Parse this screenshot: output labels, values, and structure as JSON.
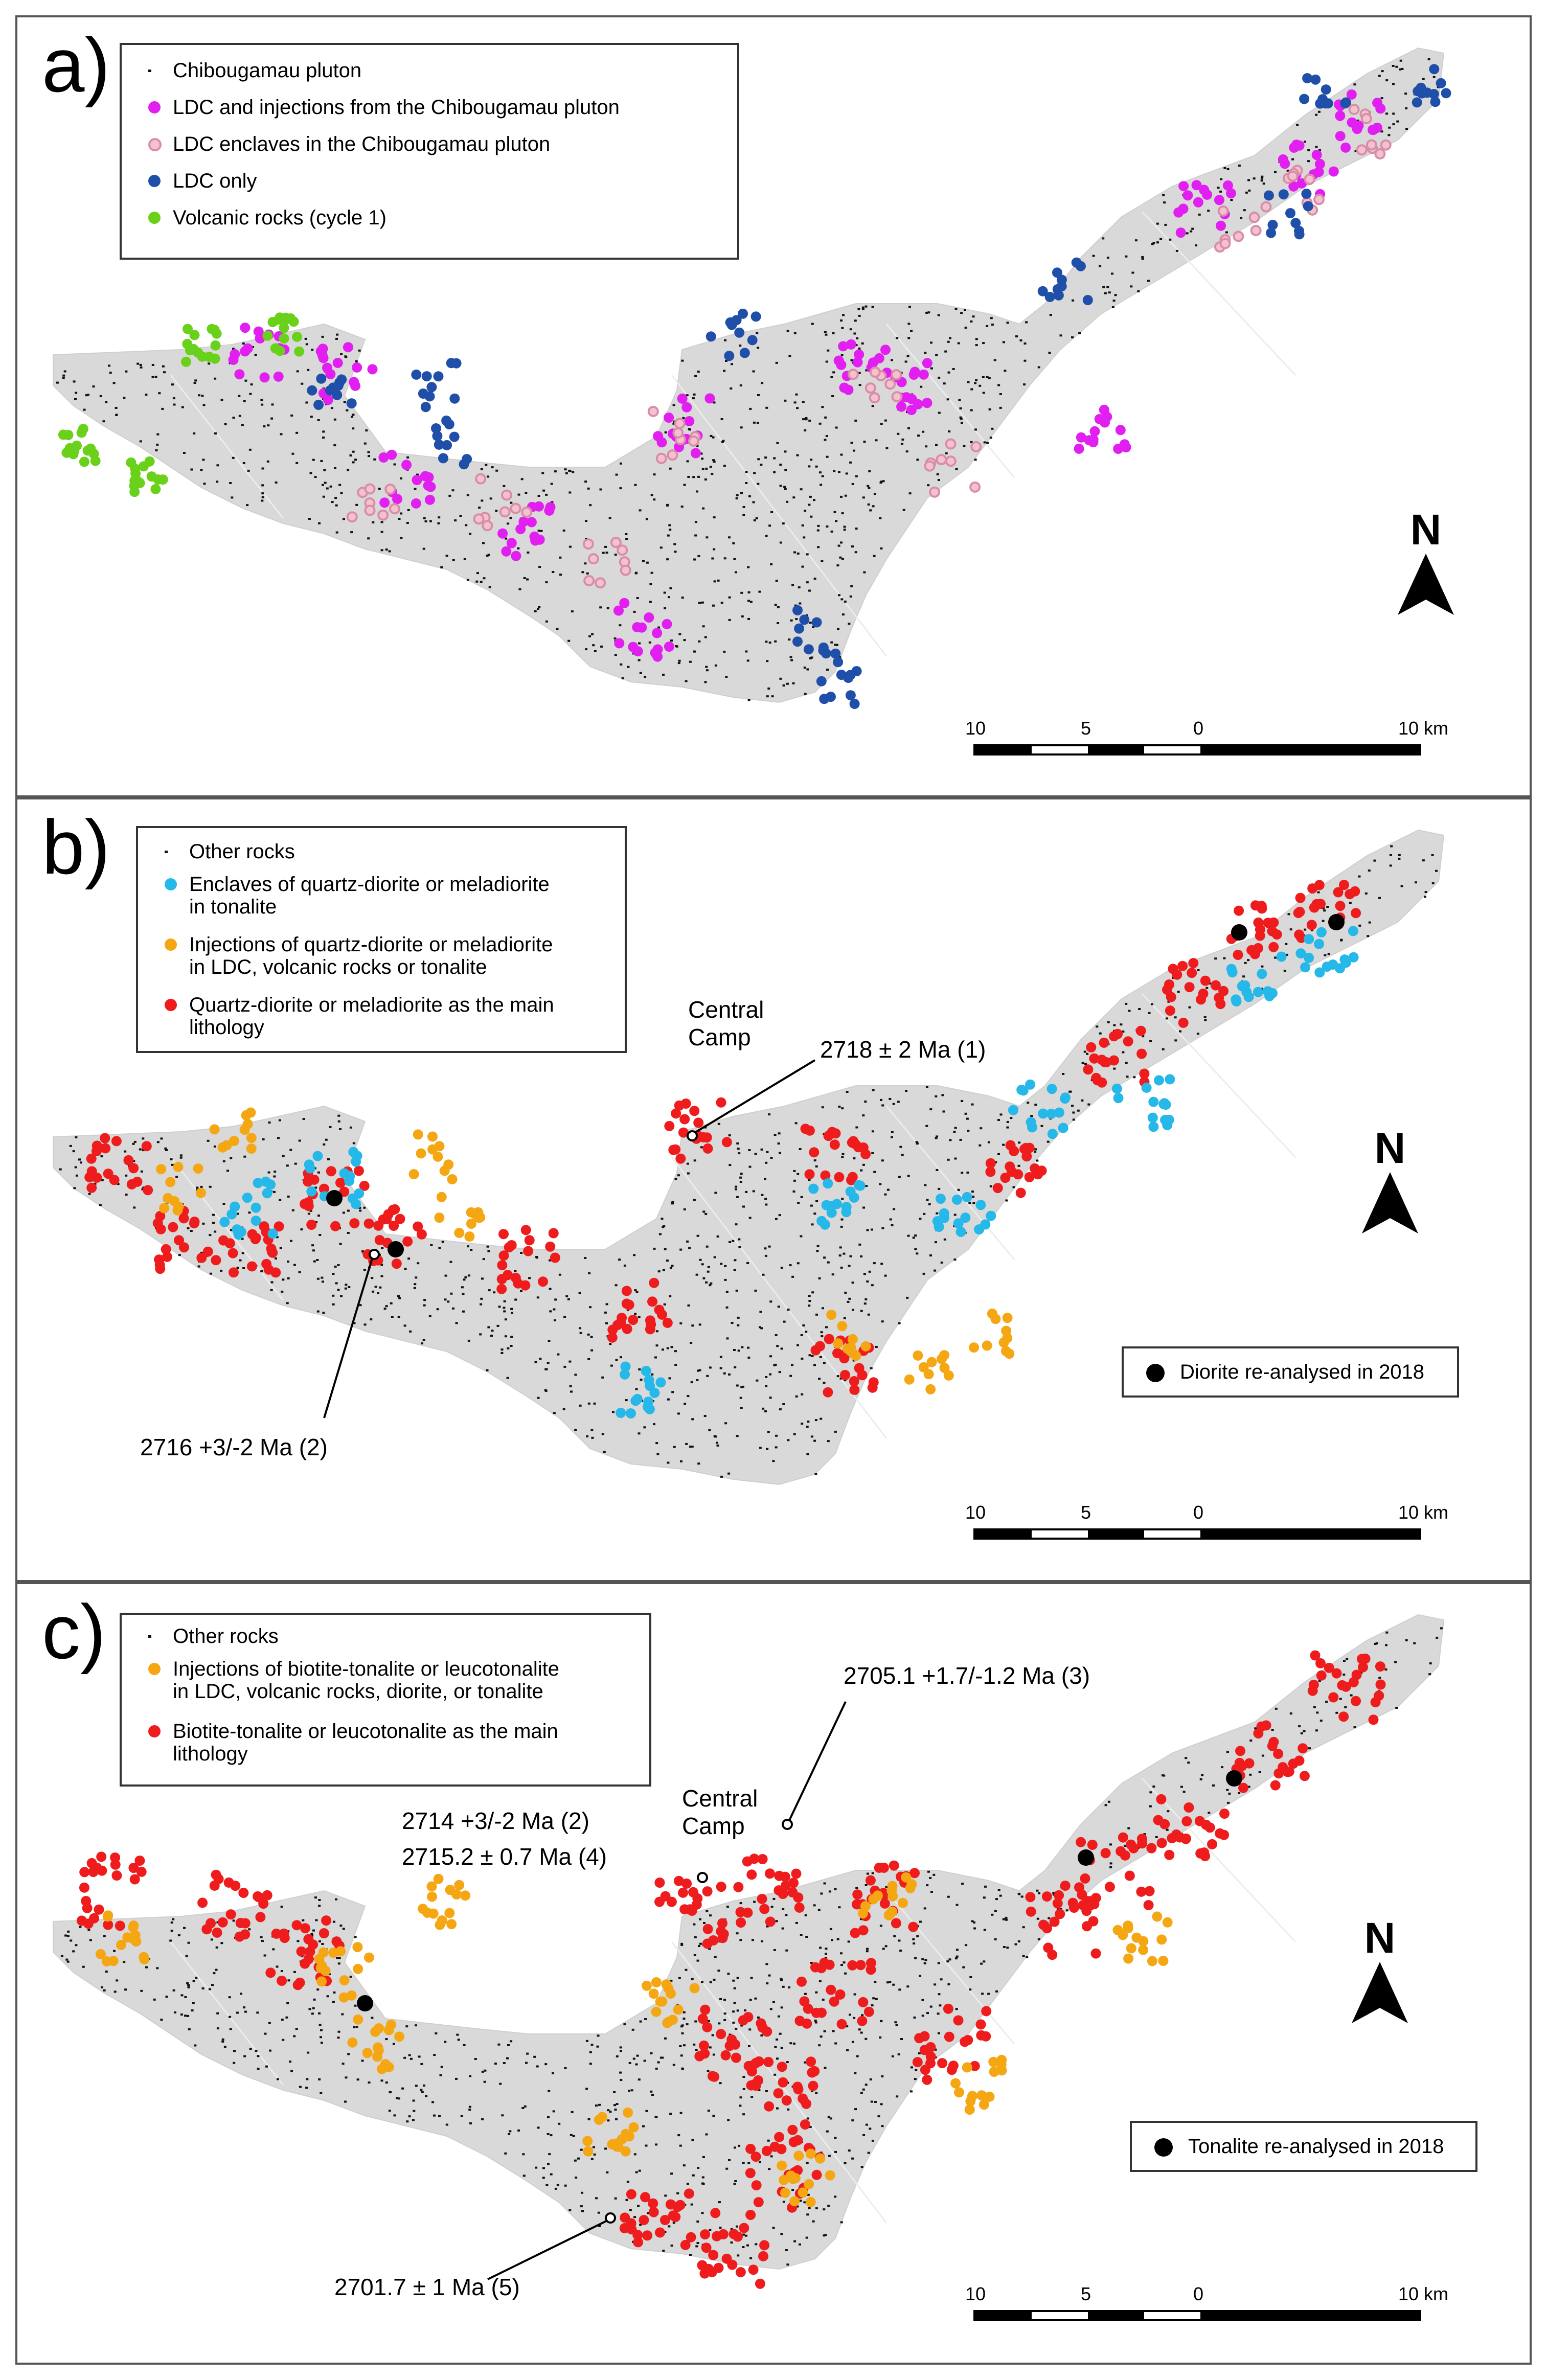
{
  "colors": {
    "pluton_fill": "#d9d9d9",
    "black_tick": "#111111",
    "magenta": "#e01ff0",
    "pink_fill": "#f4c2cf",
    "pink_edge": "#d88ea6",
    "dark_blue": "#1f4fa8",
    "green": "#6ad11b",
    "cyan": "#25b8e8",
    "orange": "#f5a713",
    "red": "#ee1c1c",
    "black": "#000000"
  },
  "panels": [
    {
      "label": "a)",
      "legend": [
        {
          "symbol": "tick",
          "color": "#111111",
          "text": "Chibougamau pluton"
        },
        {
          "symbol": "dot",
          "color": "#e01ff0",
          "text": "LDC and injections from the Chibougamau pluton"
        },
        {
          "symbol": "ring",
          "color": "#f4c2cf",
          "text": "LDC enclaves in the Chibougamau pluton"
        },
        {
          "symbol": "dot",
          "color": "#1f4fa8",
          "text": "LDC only"
        },
        {
          "symbol": "dot",
          "color": "#6ad11b",
          "text": "Volcanic rocks (cycle 1)"
        }
      ],
      "north": "N",
      "scale": {
        "ticks": [
          "10",
          "5",
          "0",
          "10 km"
        ]
      }
    },
    {
      "label": "b)",
      "legend": [
        {
          "symbol": "tick",
          "color": "#111111",
          "text": "Other rocks"
        },
        {
          "symbol": "dot",
          "color": "#25b8e8",
          "text": "Enclaves of quartz-diorite or meladiorite\nin tonalite"
        },
        {
          "symbol": "dot",
          "color": "#f5a713",
          "text": "Injections of quartz-diorite or meladiorite\nin LDC, volcanic rocks or tonalite"
        },
        {
          "symbol": "dot",
          "color": "#ee1c1c",
          "text": "Quartz-diorite or meladiorite as the main\nlithology"
        }
      ],
      "annotations": {
        "central_camp": "Central\nCamp",
        "age1": "2718 ± 2 Ma (1)",
        "age2": "2716 +3/-2 Ma (2)"
      },
      "reanalysed_legend": "Diorite re-analysed in 2018",
      "north": "N",
      "scale": {
        "ticks": [
          "10",
          "5",
          "0",
          "10 km"
        ]
      }
    },
    {
      "label": "c)",
      "legend": [
        {
          "symbol": "tick",
          "color": "#111111",
          "text": "Other rocks"
        },
        {
          "symbol": "dot",
          "color": "#f5a713",
          "text": "Injections of biotite-tonalite or leucotonalite\nin LDC, volcanic rocks, diorite, or tonalite"
        },
        {
          "symbol": "dot",
          "color": "#ee1c1c",
          "text": "Biotite-tonalite or leucotonalite as the main\nlithology"
        }
      ],
      "annotations": {
        "age3": "2705.1 +1.7/-1.2 Ma (3)",
        "central_camp": "Central\nCamp",
        "age2": "2714 +3/-2 Ma (2)",
        "age4": "2715.2 ± 0.7 Ma (4)",
        "age5": "2701.7 ± 1 Ma (5)"
      },
      "reanalysed_legend": "Tonalite re-analysed in 2018",
      "north": "N",
      "scale": {
        "ticks": [
          "10",
          "5",
          "0",
          "10 km"
        ]
      }
    }
  ]
}
